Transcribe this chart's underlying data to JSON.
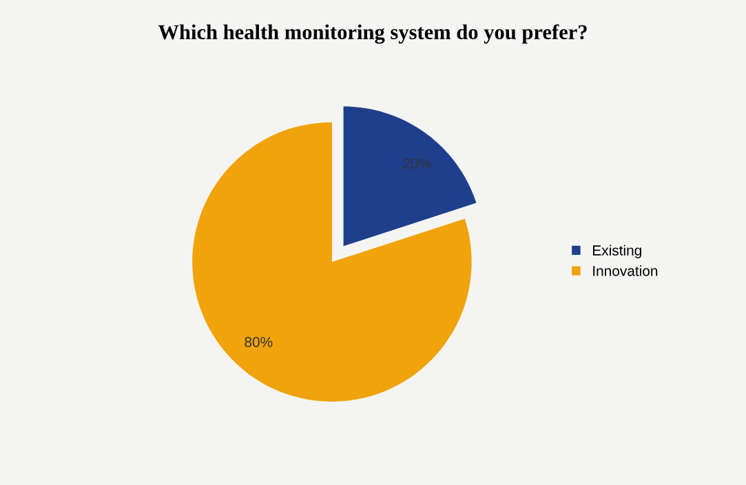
{
  "chart_data": {
    "type": "pie",
    "title": "Which health monitoring system do you prefer?",
    "categories": [
      "Existing",
      "Innovation"
    ],
    "values": [
      20,
      80
    ],
    "colors": [
      "#1f3f8c",
      "#f0a30a"
    ],
    "value_labels": [
      "20%",
      "80%"
    ],
    "legend": "right"
  }
}
